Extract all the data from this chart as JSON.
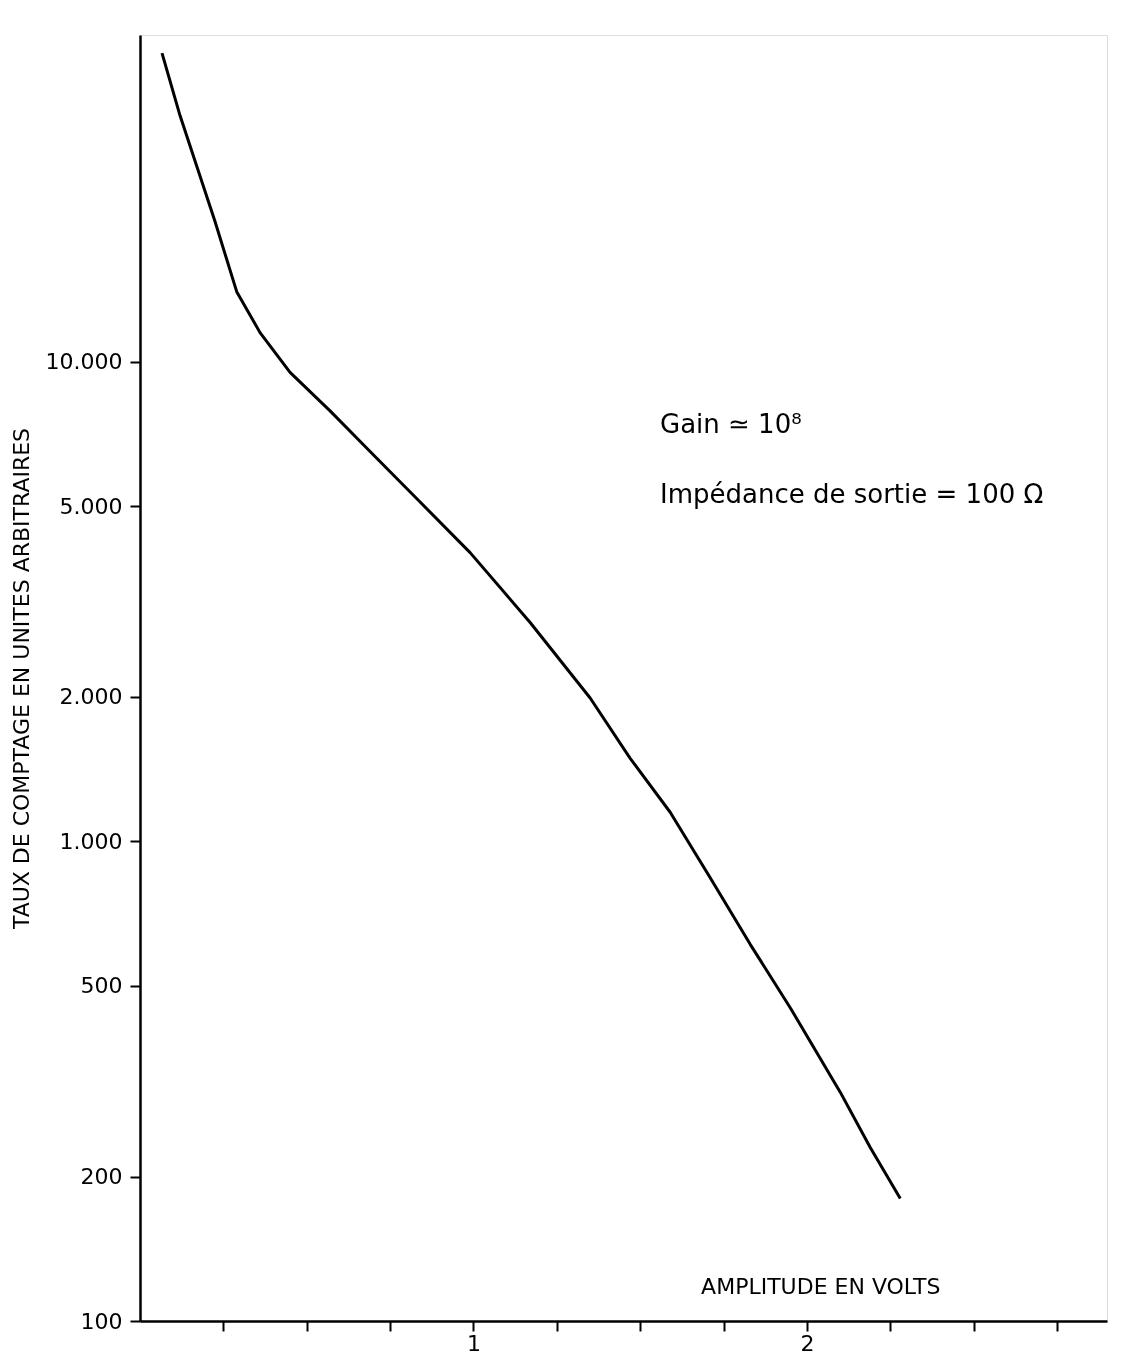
{
  "chart_data": {
    "type": "line",
    "xlabel": "AMPLITUDE EN VOLTS",
    "ylabel": "TAUX DE COMPTAGE EN UNITES ARBITRAIRES",
    "annotations": [
      "Gain ≃ 10⁸",
      "Impédance de sortie = 100 Ω"
    ],
    "x": [
      0.066,
      0.12,
      0.17,
      0.225,
      0.29,
      0.36,
      0.45,
      0.57,
      0.69,
      0.84,
      0.99,
      1.17,
      1.35,
      1.47,
      1.59,
      1.71,
      1.83,
      1.95,
      2.1,
      2.19,
      2.28
    ],
    "series": [
      {
        "color": "#000000",
        "values": [
          44000,
          32600,
          25600,
          19600,
          14000,
          11500,
          9500,
          7900,
          6500,
          5100,
          4000,
          2860,
          1990,
          1490,
          1150,
          840,
          610,
          450,
          300,
          230,
          180
        ]
      }
    ],
    "log": "y",
    "xlim": [
      0,
      2.9
    ],
    "ylim": [
      100,
      48000
    ],
    "xticks": [
      {
        "value": 0.25,
        "label": null
      },
      {
        "value": 0.5,
        "label": null
      },
      {
        "value": 0.75,
        "label": null
      },
      1,
      {
        "value": 1.25,
        "label": null
      },
      {
        "value": 1.5,
        "label": null
      },
      {
        "value": 1.75,
        "label": null
      },
      2,
      {
        "value": 2.25,
        "label": null
      },
      {
        "value": 2.5,
        "label": null
      },
      {
        "value": 2.75,
        "label": null
      }
    ],
    "yticks": [
      100,
      200,
      500,
      {
        "value": 1000,
        "label": "1.000"
      },
      {
        "value": 2000,
        "label": "2.000"
      },
      {
        "value": 5000,
        "label": "5.000"
      },
      {
        "value": 10000,
        "label": "10.000"
      }
    ],
    "grid": false,
    "marker": "none",
    "line_style": "solid"
  }
}
